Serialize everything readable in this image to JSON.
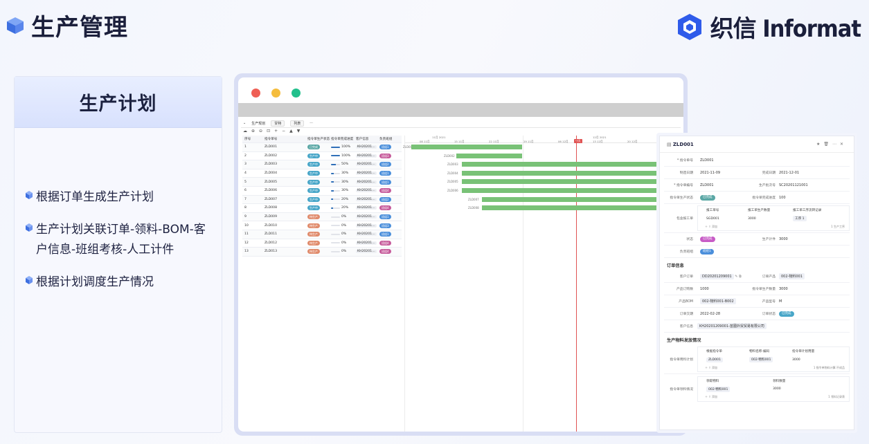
{
  "header": {
    "title": "生产管理",
    "brand": "织信 Informat"
  },
  "left_card": {
    "title": "生产计划",
    "bullets": [
      "根据订单生成生产计划",
      "生产计划关联订单-领料-BOM-客户信息-班组考核-人工计件",
      "根据计划调度生产情况"
    ]
  },
  "app": {
    "tab_title": "生产规划",
    "tab_view": "甘特",
    "tab_list": "列表",
    "columns": [
      "序号",
      "指令单号",
      "指令单生产状态",
      "指令单完成进度",
      "客户信息",
      "负责班组"
    ],
    "rows": [
      {
        "no": "1",
        "code": "ZLD001",
        "status": "已完成",
        "status_color": "#5aa7a5",
        "pct": "100%",
        "progress": 1.0,
        "cust": "KH20201…",
        "team": "班组1",
        "team_color": "#4b8fdb"
      },
      {
        "no": "2",
        "code": "ZLD002",
        "status": "生产中",
        "status_color": "#48a6c8",
        "pct": "100%",
        "progress": 1.0,
        "cust": "KH20201…",
        "team": "班组3",
        "team_color": "#c65b9b"
      },
      {
        "no": "3",
        "code": "ZLD003",
        "status": "生产中",
        "status_color": "#48a6c8",
        "pct": "50%",
        "progress": 0.5,
        "cust": "KH20201…",
        "team": "班组2",
        "team_color": "#4b8fdb"
      },
      {
        "no": "4",
        "code": "ZLD004",
        "status": "生产中",
        "status_color": "#48a6c8",
        "pct": "30%",
        "progress": 0.3,
        "cust": "KH20201…",
        "team": "班组1",
        "team_color": "#4b8fdb"
      },
      {
        "no": "5",
        "code": "ZLD005",
        "status": "生产中",
        "status_color": "#48a6c8",
        "pct": "30%",
        "progress": 0.3,
        "cust": "KH20201…",
        "team": "班组1",
        "team_color": "#4b8fdb"
      },
      {
        "no": "6",
        "code": "ZLD006",
        "status": "生产中",
        "status_color": "#48a6c8",
        "pct": "30%",
        "progress": 0.3,
        "cust": "KH20201…",
        "team": "班组4",
        "team_color": "#c65b9b"
      },
      {
        "no": "7",
        "code": "ZLD007",
        "status": "生产中",
        "status_color": "#48a6c8",
        "pct": "20%",
        "progress": 0.2,
        "cust": "KH20201…",
        "team": "班组2",
        "team_color": "#4b8fdb"
      },
      {
        "no": "8",
        "code": "ZLD008",
        "status": "生产中",
        "status_color": "#48a6c8",
        "pct": "20%",
        "progress": 0.2,
        "cust": "KH20201…",
        "team": "班组4",
        "team_color": "#c65b9b"
      },
      {
        "no": "9",
        "code": "ZLD009",
        "status": "待生产",
        "status_color": "#e08b6c",
        "pct": "0%",
        "progress": 0,
        "cust": "KH20201…",
        "team": "班组1",
        "team_color": "#4b8fdb"
      },
      {
        "no": "10",
        "code": "ZLD010",
        "status": "待生产",
        "status_color": "#e08b6c",
        "pct": "0%",
        "progress": 0,
        "cust": "KH20201…",
        "team": "班组3",
        "team_color": "#4b8fdb"
      },
      {
        "no": "11",
        "code": "ZLD011",
        "status": "待生产",
        "status_color": "#e08b6c",
        "pct": "0%",
        "progress": 0,
        "cust": "KH20201…",
        "team": "班组1",
        "team_color": "#4b8fdb"
      },
      {
        "no": "12",
        "code": "ZLD012",
        "status": "待生产",
        "status_color": "#e08b6c",
        "pct": "0%",
        "progress": 0,
        "cust": "KH20201…",
        "team": "班组4",
        "team_color": "#c65b9b"
      },
      {
        "no": "13",
        "code": "ZLD013",
        "status": "待生产",
        "status_color": "#e08b6c",
        "pct": "0%",
        "progress": 0,
        "cust": "KH20201…",
        "team": "班组4",
        "team_color": "#c65b9b"
      }
    ],
    "gantt": {
      "months": [
        "11月 2021",
        "12月 2021"
      ],
      "days": [
        "08 11月",
        "15 11月",
        "22 11月",
        "29 11月",
        "06 12月",
        "13 12月",
        "20 12月"
      ],
      "today": "今天",
      "bar_labels": [
        "ZLD001",
        "ZLD002",
        "ZLD003",
        "ZLD004",
        "ZLD005",
        "ZLD006",
        "ZLD007",
        "ZLD008"
      ]
    }
  },
  "detail": {
    "title": "ZLD001",
    "rows": [
      {
        "l1": "* 指令单号",
        "v1": "ZLD001"
      },
      {
        "l1": "制造日期",
        "v1": "2021-11-09",
        "l2": "完成日期",
        "v2": "2021-12-01"
      },
      {
        "l1": "* 指令单编号",
        "v1": "ZLD001",
        "l2": "生产批次号",
        "v2": "SC20201121001"
      },
      {
        "l1": "指令单生产状态",
        "v1": "已完成",
        "l2": "指令单完成进度",
        "v2": "100"
      }
    ],
    "bao_label": "包含报工单",
    "bao_cols": [
      "报工单号",
      "报工单生产数量",
      "报工单工序流转记录"
    ],
    "bao_row": [
      "SGD001",
      "3000",
      "工序 1"
    ],
    "bao_footer": "1 生产工序",
    "status_label": "状态",
    "status_val": "已完成",
    "qty_label": "生产计件",
    "qty_val": "3000",
    "team_label": "负责班组",
    "team_val": "班组1",
    "order_section": "订单信息",
    "order_rows": [
      {
        "l1": "客户订单",
        "v1": "DD20201209001",
        "l2": "订单产品",
        "v2": "002-物料001"
      },
      {
        "l1": "产品订购数",
        "v1": "1000",
        "l2": "指令单生产数量",
        "v2": "3000"
      },
      {
        "l1": "产品BOM",
        "v1": "002-物料001-B002",
        "l2": "产品型号",
        "v2": "M"
      },
      {
        "l1": "订单交期",
        "v1": "2022-02-28",
        "l2": "订单状态",
        "v2": "已完成"
      },
      {
        "l1": "客户信息",
        "v1": "KH20201209001-苗圃外贸贸易有限公司"
      }
    ],
    "material_section": "生产物料发放情况",
    "mat1_label": "指令单用料计划",
    "mat1_cols": [
      "根据指令单",
      "物料名称-编码",
      "指令单计划用量"
    ],
    "mat1_row": [
      "ZLD001",
      "002-物料001",
      "3000"
    ],
    "mat1_footer": "1 指令单物料计算:不成品",
    "mat2_label": "指令单领料情况",
    "mat2_cols": [
      "领取物料",
      "领料数量"
    ],
    "mat2_row": [
      "002-物料001",
      "3000"
    ],
    "mat2_footer": "1 领料记录表",
    "add_label": "添加"
  }
}
